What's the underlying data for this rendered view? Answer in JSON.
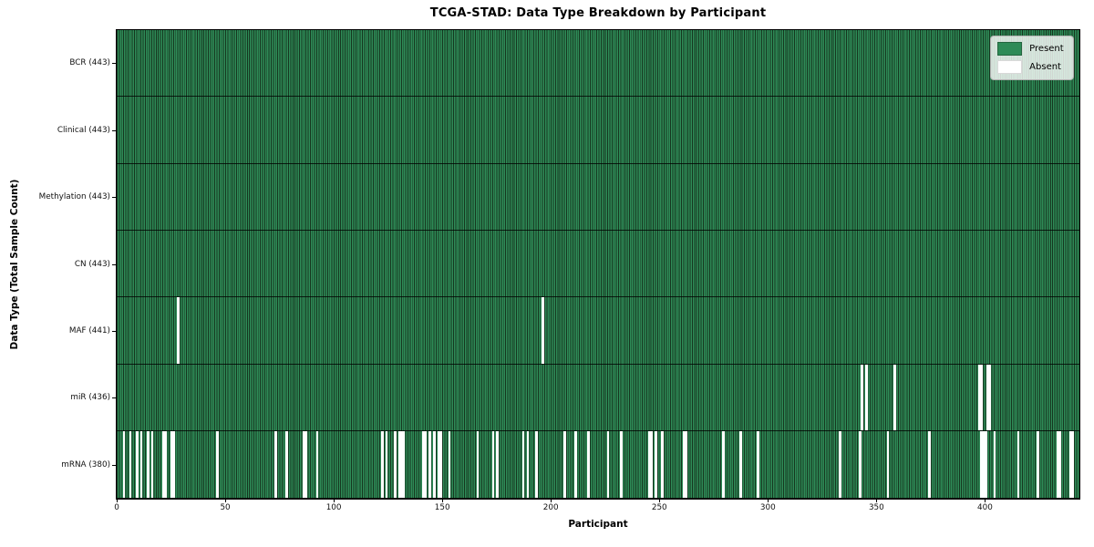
{
  "title": "TCGA-STAD: Data Type Breakdown by Participant",
  "xlabel": "Participant",
  "ylabel": "Data Type (Total Sample Count)",
  "legend": {
    "present_label": "Present",
    "absent_label": "Absent"
  },
  "colors": {
    "present": "#2e8b57",
    "present_stripe_dark": "#16361f",
    "absent": "#ffffff",
    "axis": "#000000"
  },
  "chart_data": {
    "type": "heatmap",
    "title": "TCGA-STAD: Data Type Breakdown by Participant",
    "xlabel": "Participant",
    "ylabel": "Data Type (Total Sample Count)",
    "legend_entries": [
      "Present",
      "Absent"
    ],
    "legend_position": "upper right",
    "grid": false,
    "x_ticks": [
      0,
      50,
      100,
      150,
      200,
      250,
      300,
      350,
      400
    ],
    "xlim": [
      0,
      443
    ],
    "total_participants": 443,
    "rows": [
      {
        "name": "BCR",
        "label": "BCR (443)",
        "present_count": 443,
        "absent_participants": []
      },
      {
        "name": "Clinical",
        "label": "Clinical (443)",
        "present_count": 443,
        "absent_participants": []
      },
      {
        "name": "Methylation",
        "label": "Methylation (443)",
        "present_count": 443,
        "absent_participants": []
      },
      {
        "name": "CN",
        "label": "CN (443)",
        "present_count": 443,
        "absent_participants": []
      },
      {
        "name": "MAF",
        "label": "MAF (441)",
        "present_count": 441,
        "absent_participants": [
          28,
          196
        ]
      },
      {
        "name": "miR",
        "label": "miR (436)",
        "present_count": 436,
        "absent_participants": [
          343,
          345,
          358,
          397,
          398,
          401,
          402
        ]
      },
      {
        "name": "mRNA",
        "label": "mRNA (380)",
        "present_count": 380,
        "absent_participants": [
          3,
          6,
          9,
          11,
          14,
          16,
          21,
          22,
          25,
          26,
          46,
          73,
          78,
          86,
          87,
          92,
          122,
          124,
          128,
          130,
          131,
          132,
          141,
          142,
          144,
          146,
          148,
          149,
          153,
          166,
          173,
          175,
          187,
          189,
          193,
          206,
          211,
          217,
          226,
          232,
          245,
          246,
          248,
          251,
          261,
          262,
          279,
          287,
          295,
          333,
          342,
          355,
          374,
          398,
          399,
          400,
          404,
          415,
          424,
          433,
          434,
          439,
          440
        ]
      }
    ]
  }
}
